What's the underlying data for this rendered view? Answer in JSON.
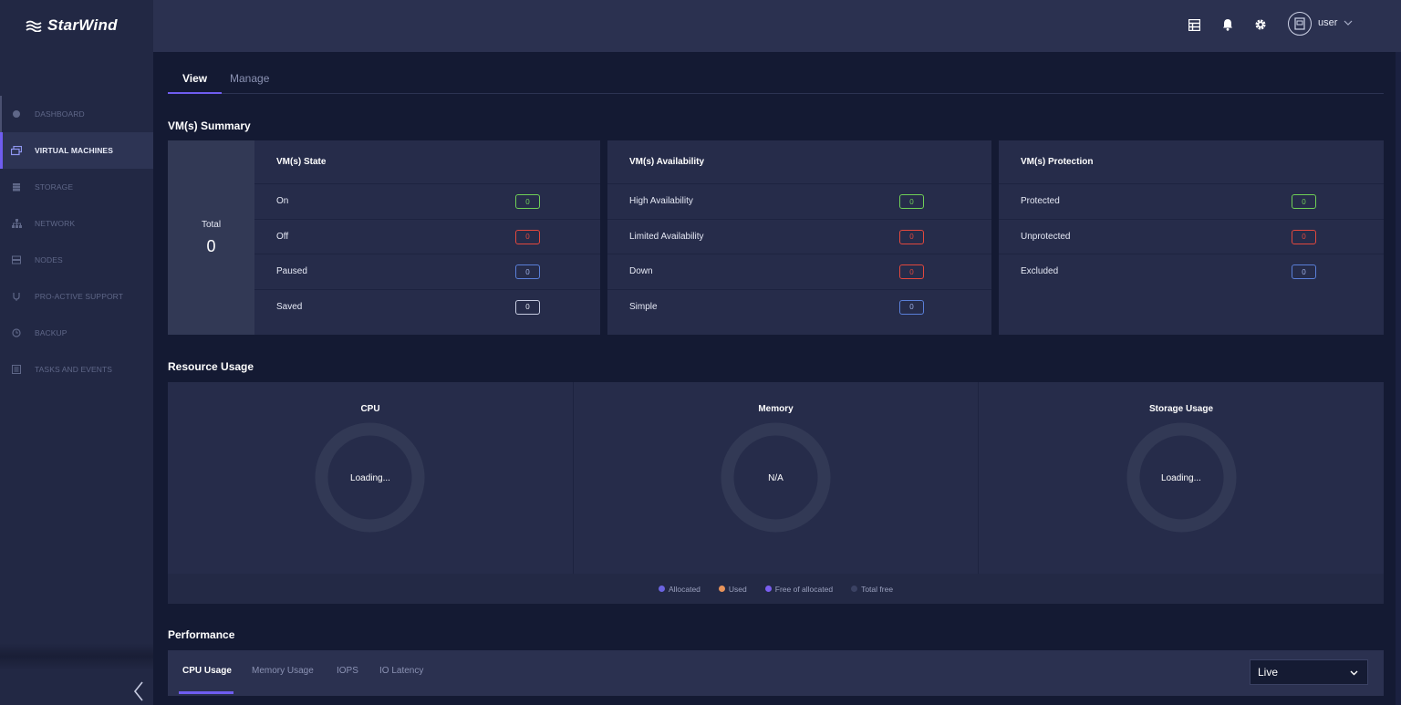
{
  "app": {
    "logo_text": "StarWind"
  },
  "sidebar": {
    "items": [
      {
        "label": "DASHBOARD",
        "icon": "dashboard-icon"
      },
      {
        "label": "VIRTUAL MACHINES",
        "icon": "virtual-machines-icon",
        "active": true
      },
      {
        "label": "STORAGE",
        "icon": "storage-icon"
      },
      {
        "label": "NETWORK",
        "icon": "network-icon"
      },
      {
        "label": "NODES",
        "icon": "nodes-icon"
      },
      {
        "label": "PRO-ACTIVE SUPPORT",
        "icon": "support-icon"
      },
      {
        "label": "BACKUP",
        "icon": "backup-icon"
      },
      {
        "label": "TASKS AND EVENTS",
        "icon": "tasks-icon"
      }
    ]
  },
  "header": {
    "icons": [
      "table-icon",
      "bell-icon",
      "gear-icon"
    ],
    "user_name": "user"
  },
  "tabs": {
    "view": "View",
    "manage": "Manage"
  },
  "summary": {
    "title": "VM(s) Summary",
    "total_label": "Total",
    "total_value": "0",
    "state": {
      "title": "VM(s) State",
      "rows": [
        {
          "label": "On",
          "value": "0",
          "color": "green"
        },
        {
          "label": "Off",
          "value": "0",
          "color": "red"
        },
        {
          "label": "Paused",
          "value": "0",
          "color": "blue"
        },
        {
          "label": "Saved",
          "value": "0",
          "color": "white"
        }
      ]
    },
    "availability": {
      "title": "VM(s) Availability",
      "rows": [
        {
          "label": "High Availability",
          "value": "0",
          "color": "green"
        },
        {
          "label": "Limited Availability",
          "value": "0",
          "color": "red"
        },
        {
          "label": "Down",
          "value": "0",
          "color": "red"
        },
        {
          "label": "Simple",
          "value": "0",
          "color": "blue"
        }
      ]
    },
    "protection": {
      "title": "VM(s) Protection",
      "rows": [
        {
          "label": "Protected",
          "value": "0",
          "color": "green"
        },
        {
          "label": "Unprotected",
          "value": "0",
          "color": "red"
        },
        {
          "label": "Excluded",
          "value": "0",
          "color": "blue"
        }
      ]
    }
  },
  "resource": {
    "title": "Resource Usage",
    "cpu": {
      "title": "CPU",
      "value": "Loading..."
    },
    "memory": {
      "title": "Memory",
      "value": "N/A"
    },
    "storage": {
      "title": "Storage Usage",
      "value": "Loading..."
    },
    "legend": [
      {
        "label": "Allocated",
        "color": "#6b63e0"
      },
      {
        "label": "Used",
        "color": "#e8935a"
      },
      {
        "label": "Free of allocated",
        "color": "#7a5ef0"
      },
      {
        "label": "Total free",
        "color": "#3b4263"
      }
    ]
  },
  "performance": {
    "title": "Performance",
    "tabs": {
      "cpu": "CPU Usage",
      "memory": "Memory Usage",
      "iops": "IOPS",
      "latency": "IO Latency"
    },
    "range_selected": "Live"
  }
}
